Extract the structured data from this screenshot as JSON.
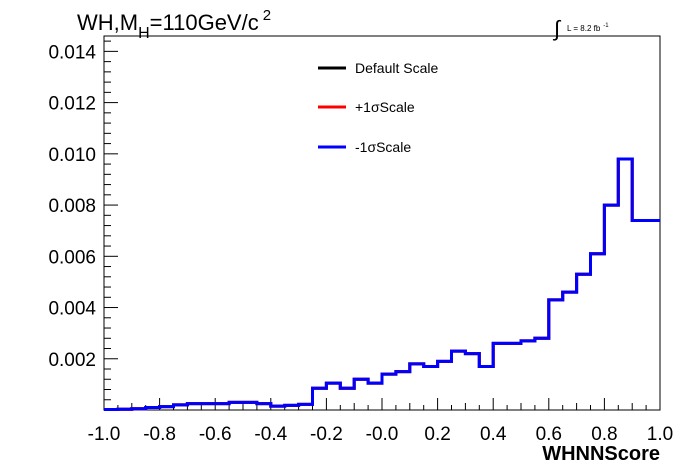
{
  "title": {
    "prefix": "WH,M",
    "subscript": "H",
    "middle": "=110GeV/c",
    "superscript": "2"
  },
  "luminosity": {
    "symbol": "∫",
    "text": "L = 8.2 fb",
    "superscript": "-1"
  },
  "chart_data": {
    "type": "line",
    "xlabel": "WHNNScore",
    "ylabel": "",
    "xlim": [
      -1.0,
      1.0
    ],
    "ylim": [
      0,
      0.0146
    ],
    "grid": false,
    "legend_position": "top-center",
    "x_ticks": [
      "-1.0",
      "-0.8",
      "-0.6",
      "-0.4",
      "-0.2",
      "-0.0",
      "0.2",
      "0.4",
      "0.6",
      "0.8",
      "1.0"
    ],
    "y_ticks": [
      "0.002",
      "0.004",
      "0.006",
      "0.008",
      "0.010",
      "0.012",
      "0.014"
    ],
    "bin_edges": [
      -1.0,
      -0.95,
      -0.9,
      -0.85,
      -0.8,
      -0.75,
      -0.7,
      -0.65,
      -0.6,
      -0.55,
      -0.5,
      -0.45,
      -0.4,
      -0.35,
      -0.3,
      -0.25,
      -0.2,
      -0.15,
      -0.1,
      -0.05,
      0.0,
      0.05,
      0.1,
      0.15,
      0.2,
      0.25,
      0.3,
      0.35,
      0.4,
      0.45,
      0.5,
      0.55,
      0.6,
      0.65,
      0.7,
      0.75,
      0.8,
      0.85,
      0.9,
      0.95,
      1.0
    ],
    "series": [
      {
        "name": "Default Scale",
        "color": "#000000",
        "values": [
          2e-05,
          3e-05,
          5e-05,
          0.0001,
          0.00013,
          0.0002,
          0.00025,
          0.00025,
          0.00025,
          0.0003,
          0.0003,
          0.00025,
          0.00015,
          0.00018,
          0.00022,
          0.00085,
          0.00105,
          0.00085,
          0.0012,
          0.00105,
          0.0014,
          0.0015,
          0.0018,
          0.0017,
          0.0019,
          0.0023,
          0.0022,
          0.0017,
          0.0026,
          0.0026,
          0.0027,
          0.0028,
          0.0043,
          0.0046,
          0.0053,
          0.0061,
          0.008,
          0.0098,
          0.0074,
          0.0074
        ]
      },
      {
        "name": "+1σScale",
        "color": "#ff0000",
        "values": [
          2e-05,
          3e-05,
          5e-05,
          0.0001,
          0.00013,
          0.0002,
          0.00025,
          0.00025,
          0.00025,
          0.0003,
          0.0003,
          0.00025,
          0.00015,
          0.00018,
          0.00022,
          0.00085,
          0.00105,
          0.00085,
          0.0012,
          0.00105,
          0.0014,
          0.0015,
          0.0018,
          0.0017,
          0.0019,
          0.0023,
          0.0022,
          0.0017,
          0.0026,
          0.0026,
          0.0027,
          0.0028,
          0.0043,
          0.0046,
          0.0053,
          0.0061,
          0.008,
          0.0098,
          0.0074,
          0.0074
        ]
      },
      {
        "name": "-1σScale",
        "color": "#0000ff",
        "values": [
          2e-05,
          3e-05,
          5e-05,
          0.0001,
          0.00013,
          0.0002,
          0.00025,
          0.00025,
          0.00025,
          0.0003,
          0.0003,
          0.00025,
          0.00015,
          0.00018,
          0.00022,
          0.00085,
          0.00105,
          0.00085,
          0.0012,
          0.00105,
          0.0014,
          0.0015,
          0.0018,
          0.0017,
          0.0019,
          0.0023,
          0.0022,
          0.0017,
          0.0026,
          0.0026,
          0.0027,
          0.0028,
          0.0043,
          0.0046,
          0.0053,
          0.0061,
          0.008,
          0.0098,
          0.0074,
          0.0074
        ]
      }
    ]
  }
}
